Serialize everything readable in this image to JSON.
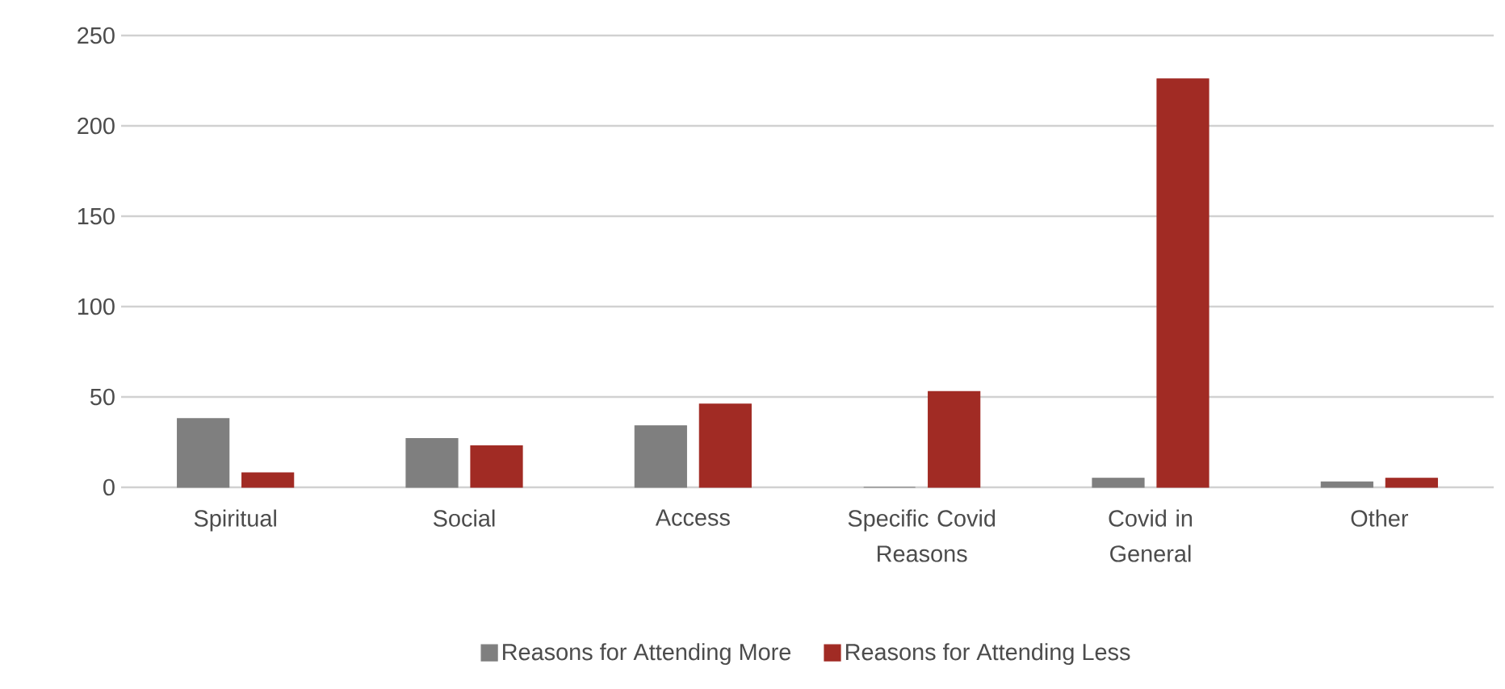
{
  "chart_data": {
    "type": "bar",
    "categories": [
      "Spiritual",
      "Social",
      "Access",
      "Specific Covid Reasons",
      "Covid in General",
      "Other"
    ],
    "series": [
      {
        "name": "Reasons for Attending More",
        "color": "#7f7f7f",
        "values": [
          38,
          27,
          34,
          0,
          5,
          3
        ]
      },
      {
        "name": "Reasons for Attending Less",
        "color": "#a12b24",
        "values": [
          8,
          23,
          46,
          53,
          226,
          5
        ]
      }
    ],
    "ylim": [
      0,
      250
    ],
    "yticks": [
      0,
      50,
      100,
      150,
      200,
      250
    ],
    "grid": "y",
    "legend": "bottom"
  }
}
